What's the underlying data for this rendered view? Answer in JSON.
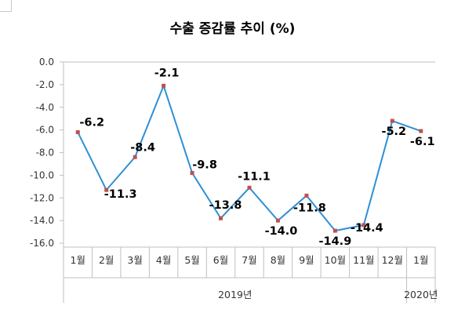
{
  "chart_data": {
    "type": "line",
    "title": "수출 증감률 추이 (%)",
    "categories": [
      "1월",
      "2월",
      "3월",
      "4월",
      "5월",
      "6월",
      "7월",
      "8월",
      "9월",
      "10월",
      "11월",
      "12월",
      "1월"
    ],
    "year_groups": [
      {
        "label": "2019년",
        "start": 0,
        "end": 11
      },
      {
        "label": "2020년",
        "start": 12,
        "end": 12
      }
    ],
    "series": [
      {
        "values": [
          -6.2,
          -11.3,
          -8.4,
          -2.1,
          -9.8,
          -13.8,
          -11.1,
          -14.0,
          -11.8,
          -14.9,
          -14.4,
          -5.2,
          -6.1
        ],
        "data_labels": [
          "-6.2",
          "-11.3",
          "-8.4",
          "-2.1",
          "-9.8",
          "-13.8",
          "-11.1",
          "-14.0",
          "-11.8",
          "-14.9",
          "-14.4",
          "-5.2",
          "-6.1"
        ],
        "line_color": "#2e8fd6",
        "marker_color": "#c0504d"
      }
    ],
    "ylim": [
      -16.0,
      0.0
    ],
    "yticks": [
      0.0,
      -2.0,
      -4.0,
      -6.0,
      -8.0,
      -10.0,
      -12.0,
      -14.0,
      -16.0
    ],
    "ytick_labels": [
      "0.0",
      "-2.0",
      "-4.0",
      "-6.0",
      "-8.0",
      "-10.0",
      "-12.0",
      "-14.0",
      "-16.0"
    ],
    "grid": false,
    "legend": "none",
    "axis_color": "#bfbfbf"
  }
}
